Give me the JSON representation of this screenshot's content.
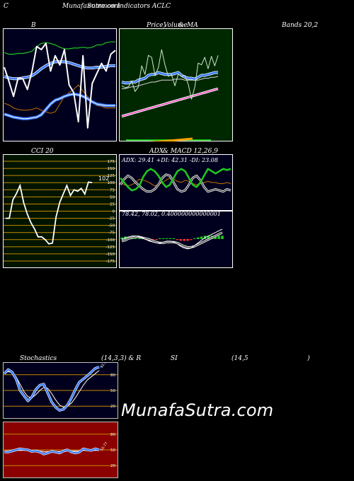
{
  "header": {
    "left": "C",
    "title": "MunafaSutra.com",
    "subtitle": "common Indicators ACLC"
  },
  "watermark": "MunafaSutra.com",
  "labels": {
    "bands_left": "B",
    "bands_right": "Bands 20,2",
    "price_a": "Price,",
    "price_b": "Volume",
    "price_c": "&",
    "price_d": "MA",
    "cci_title": "CCI 20",
    "adx_macd_title_a": "ADX",
    "adx_macd_title_b": "& MACD 12,26,9",
    "stoch_a": "Stochastics",
    "stoch_b": "(14,3,3) & R",
    "stoch_c": "SI",
    "stoch_d": "(14,5",
    "stoch_e": ")"
  },
  "colors": {
    "bands_bg": "#00001e",
    "price_bg": "#002800",
    "cci_bg": "#001400",
    "adx_bg": "#00001e",
    "stoch_bg": "#00001e",
    "rsi_bg": "#8b0000",
    "accent_blue": "#3a7bff",
    "green": "#1fc41f",
    "orange": "#c77000"
  },
  "chart_data": [
    {
      "type": "line",
      "name": "bollinger-bands",
      "upper": [
        112,
        110,
        110,
        111,
        111,
        112,
        114,
        120,
        124,
        125,
        124,
        122,
        119,
        117,
        117,
        118,
        118,
        119,
        118,
        119,
        122,
        122,
        125,
        126,
        126
      ],
      "middle": [
        81,
        79,
        78,
        78,
        79,
        80,
        82,
        86,
        91,
        95,
        98,
        100,
        100,
        100,
        99,
        97,
        95,
        93,
        92,
        92,
        93,
        93,
        94,
        95,
        95
      ],
      "lower": [
        32,
        30,
        28,
        27,
        26,
        26,
        27,
        28,
        31,
        38,
        45,
        50,
        52,
        55,
        57,
        58,
        57,
        55,
        52,
        48,
        45,
        44,
        43,
        43,
        43
      ],
      "price": [
        93,
        75,
        55,
        79,
        78,
        64,
        88,
        120,
        116,
        124,
        88,
        108,
        96,
        116,
        70,
        60,
        22,
        108,
        14,
        72,
        85,
        98,
        88,
        110,
        115
      ],
      "volume_orange": [
        46,
        44,
        40,
        38,
        37,
        37,
        38,
        40,
        37,
        35,
        33,
        35,
        45,
        55,
        60,
        64,
        70,
        62,
        55,
        48,
        43,
        42,
        40,
        40,
        40
      ],
      "ylim": [
        0,
        140
      ]
    },
    {
      "type": "line",
      "name": "price-volume-ma",
      "price": [
        74,
        72,
        73,
        79,
        68,
        73,
        95,
        86,
        106,
        104,
        85,
        93,
        112,
        96,
        84,
        86,
        74,
        86,
        84,
        85,
        76,
        60,
        73,
        98,
        96,
        104,
        92,
        105,
        95,
        106
      ],
      "ma_short": [
        78,
        77,
        77,
        78,
        78,
        80,
        81,
        82,
        85,
        86,
        86,
        88,
        87,
        86,
        86,
        86,
        87,
        88,
        85,
        83,
        82,
        82,
        81,
        83,
        85,
        85,
        86,
        87,
        88,
        88
      ],
      "ma_mid": [
        71,
        71,
        72,
        73,
        73,
        74,
        75,
        76,
        77,
        78,
        78,
        79,
        80,
        80,
        80,
        80,
        81,
        81,
        81,
        80,
        80,
        80,
        80,
        80,
        81,
        82,
        82,
        83,
        83,
        84
      ],
      "ma_long": [
        42,
        43,
        44,
        45,
        46,
        47,
        48,
        49,
        50,
        51,
        52,
        53,
        54,
        55,
        56,
        57,
        58,
        59,
        60,
        61,
        62,
        63,
        64,
        65,
        66,
        67,
        68,
        69,
        70,
        71
      ],
      "ylim": [
        20,
        130
      ]
    },
    {
      "type": "line",
      "name": "cci-20",
      "title": "CCI 20",
      "x": [
        1,
        2,
        3,
        4,
        5,
        6,
        7,
        8,
        9,
        10,
        11,
        12,
        13,
        14,
        15,
        16,
        17,
        18,
        19,
        20,
        21,
        22,
        23,
        24,
        25
      ],
      "values": [
        -25,
        -25,
        40,
        62,
        90,
        30,
        -10,
        -40,
        -62,
        -90,
        -90,
        -100,
        -115,
        -112,
        -20,
        30,
        60,
        90,
        55,
        75,
        70,
        80,
        60,
        102,
        100
      ],
      "latest_label": "102",
      "ticks": [
        175,
        150,
        125,
        100,
        75,
        50,
        25,
        0,
        -25,
        -50,
        -75,
        -100,
        -125,
        -150,
        -175
      ],
      "ylim": [
        -175,
        175
      ]
    },
    {
      "type": "line",
      "name": "adx",
      "label": "ADX: 29.41 +DI: 42.31 -DI: 23.08",
      "adx": [
        30,
        28,
        27,
        28,
        30,
        33,
        32,
        31,
        29,
        27,
        28,
        30,
        32,
        34,
        33,
        31,
        30,
        32,
        31,
        29,
        28,
        29,
        30,
        31,
        30,
        30,
        29,
        29,
        30,
        29
      ],
      "plus_di": [
        34,
        30,
        26,
        23,
        24,
        27,
        35,
        40,
        42,
        40,
        36,
        30,
        26,
        28,
        34,
        40,
        42,
        40,
        34,
        28,
        26,
        30,
        36,
        42,
        40,
        38,
        40,
        42,
        41,
        42
      ],
      "minus_di": [
        28,
        33,
        36,
        34,
        30,
        27,
        24,
        22,
        22,
        24,
        28,
        34,
        37,
        36,
        30,
        24,
        22,
        23,
        28,
        34,
        36,
        32,
        26,
        22,
        23,
        24,
        23,
        22,
        24,
        23
      ],
      "ylim": [
        10,
        50
      ]
    },
    {
      "type": "line",
      "name": "macd",
      "label": "78.42, 78.02, 0.400000000000001",
      "macd": [
        60,
        62,
        63,
        64,
        64,
        63,
        62,
        60,
        58,
        57,
        56,
        56,
        57,
        58,
        58,
        57,
        55,
        52,
        50,
        49,
        50,
        53,
        56,
        59,
        62,
        64,
        66,
        68,
        70,
        72
      ],
      "signal": [
        58,
        59,
        61,
        62,
        63,
        63,
        62,
        61,
        60,
        58,
        57,
        56,
        56,
        57,
        57,
        57,
        56,
        54,
        52,
        51,
        51,
        52,
        54,
        56,
        58,
        60,
        62,
        64,
        66,
        68
      ],
      "histogram": [
        2,
        3,
        2,
        2,
        1,
        0,
        0,
        -1,
        -2,
        -1,
        -1,
        0,
        1,
        1,
        1,
        0,
        -1,
        -2,
        -2,
        -2,
        -1,
        1,
        2,
        3,
        4,
        4,
        4,
        4,
        4,
        4
      ],
      "ylim": [
        30,
        90
      ]
    },
    {
      "type": "line",
      "name": "stochastics",
      "k": [
        82,
        90,
        85,
        72,
        50,
        40,
        30,
        38,
        52,
        60,
        62,
        45,
        28,
        18,
        12,
        14,
        22,
        36,
        52,
        66,
        72,
        78,
        85,
        92,
        95
      ],
      "d": [
        84,
        86,
        84,
        76,
        62,
        48,
        38,
        36,
        42,
        50,
        56,
        54,
        44,
        32,
        22,
        18,
        20,
        26,
        36,
        48,
        60,
        70,
        76,
        82,
        88
      ],
      "value_label": "92.56",
      "ticks": [
        80,
        50,
        20
      ],
      "ylim": [
        0,
        100
      ]
    },
    {
      "type": "line",
      "name": "rsi",
      "rsi": [
        46,
        46,
        48,
        50,
        52,
        51,
        50,
        47,
        48,
        46,
        42,
        44,
        47,
        46,
        44,
        48,
        50,
        46,
        44,
        46,
        52,
        50,
        49,
        52,
        50
      ],
      "baseline": [
        48,
        48,
        49,
        49,
        49,
        49,
        49,
        48,
        48,
        48,
        47,
        47,
        47,
        47,
        47,
        47,
        48,
        48,
        48,
        48,
        49,
        49,
        49,
        49,
        49
      ],
      "value_label": "50.77",
      "ticks": [
        80,
        50,
        20
      ],
      "ylim": [
        0,
        100
      ]
    }
  ]
}
